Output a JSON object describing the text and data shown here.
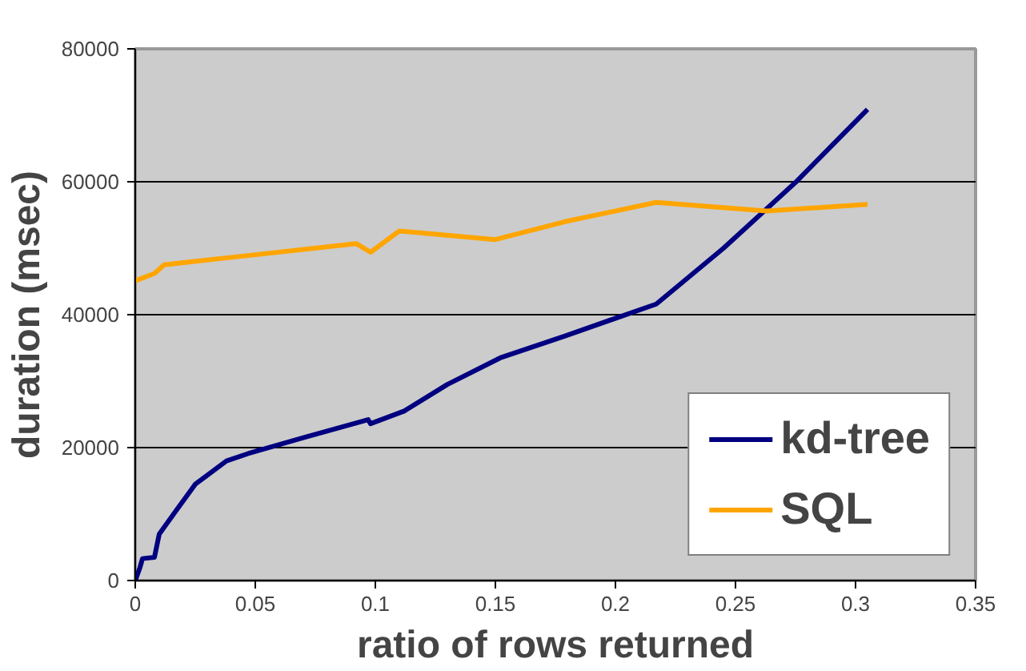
{
  "chart_data": {
    "type": "line",
    "xlabel": "ratio of rows returned",
    "ylabel": "duration (msec)",
    "xlim": [
      0,
      0.35
    ],
    "xticks": [
      0,
      0.05,
      0.1,
      0.15,
      0.2,
      0.25,
      0.3,
      0.35
    ],
    "ylim": [
      0,
      80000
    ],
    "yticks": [
      0,
      20000,
      40000,
      60000,
      80000
    ],
    "grid": "y",
    "legend": "bottom right",
    "marker": "none",
    "line_style": "solid",
    "series": [
      {
        "name": "kd-tree",
        "color": "#000080",
        "x": [
          0,
          0.002,
          0.003,
          0.008,
          0.01,
          0.017,
          0.025,
          0.038,
          0.047,
          0.07,
          0.097,
          0.098,
          0.112,
          0.13,
          0.152,
          0.179,
          0.217,
          0.245,
          0.275,
          0.305
        ],
        "values": [
          0,
          2000,
          3300,
          3500,
          7000,
          10500,
          14500,
          18000,
          19100,
          21500,
          24200,
          23600,
          25500,
          29500,
          33500,
          36800,
          41600,
          50000,
          59900,
          70900
        ]
      },
      {
        "name": "SQL",
        "color": "#ffa500",
        "x": [
          0,
          0.008,
          0.012,
          0.047,
          0.092,
          0.098,
          0.11,
          0.15,
          0.179,
          0.217,
          0.263,
          0.305
        ],
        "values": [
          45100,
          46200,
          47500,
          48900,
          50700,
          49400,
          52600,
          51300,
          54000,
          56900,
          55600,
          56600
        ]
      }
    ]
  }
}
